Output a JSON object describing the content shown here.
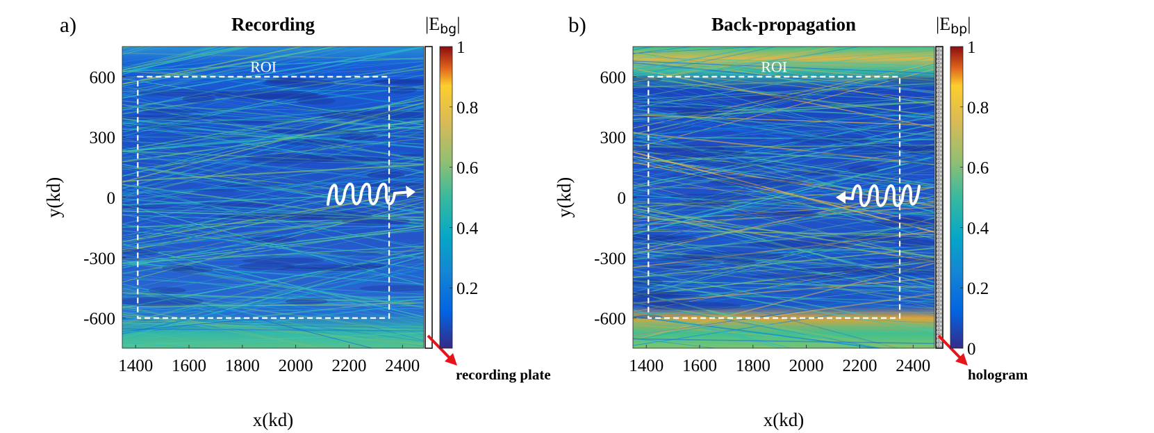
{
  "chart_data": [
    {
      "panel_label": "a)",
      "type": "heatmap",
      "title": "Recording",
      "xlabel": "x(kd)",
      "ylabel": "y(kd)",
      "xlim": [
        1350,
        2480
      ],
      "ylim": [
        -750,
        750
      ],
      "xticks": [
        1400,
        1600,
        1800,
        2000,
        2200,
        2400
      ],
      "yticks": [
        600,
        300,
        0,
        -300,
        -600
      ],
      "roi": {
        "label": "ROI",
        "x": [
          1408,
          2350
        ],
        "y": [
          -600,
          600
        ]
      },
      "colorbar": {
        "label_base": "|E",
        "label_sub": "bg",
        "label_end": "|",
        "range": [
          0,
          1
        ],
        "ticks": [
          1,
          0.8,
          0.6,
          0.4,
          0.2
        ],
        "colormap": "parula"
      },
      "plate": {
        "type": "recording plate",
        "label": "recording plate",
        "arrow_color": "#e8141b"
      },
      "wave_direction": "right"
    },
    {
      "panel_label": "b)",
      "type": "heatmap",
      "title": "Back-propagation",
      "xlabel": "x(kd)",
      "ylabel": "y(kd)",
      "xlim": [
        1350,
        2480
      ],
      "ylim": [
        -750,
        750
      ],
      "xticks": [
        1400,
        1600,
        1800,
        2000,
        2200,
        2400
      ],
      "yticks": [
        600,
        300,
        0,
        -300,
        -600
      ],
      "roi": {
        "label": "ROI",
        "x": [
          1408,
          2350
        ],
        "y": [
          -600,
          600
        ]
      },
      "colorbar": {
        "label_base": "|E",
        "label_sub": "bp",
        "label_end": "|",
        "range": [
          0,
          1
        ],
        "ticks": [
          1,
          0.8,
          0.6,
          0.4,
          0.2,
          0
        ],
        "colormap": "parula"
      },
      "plate": {
        "type": "hologram",
        "label": "hologram",
        "arrow_color": "#e8141b"
      },
      "wave_direction": "left"
    }
  ]
}
